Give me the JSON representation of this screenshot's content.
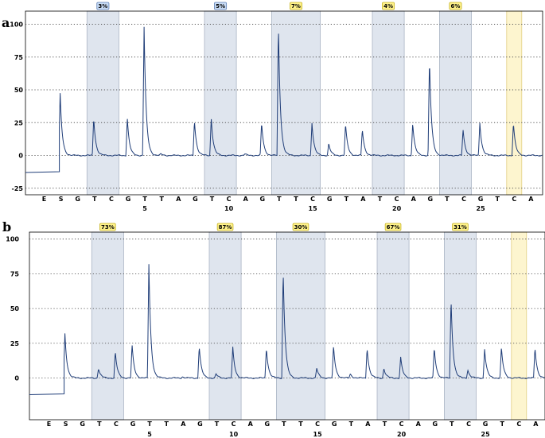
{
  "chart_data": [
    {
      "type": "pyrogram",
      "panel": "a",
      "ylim": [
        -30,
        110
      ],
      "yticks": [
        -25,
        0,
        25,
        50,
        75,
        100
      ],
      "grid": true,
      "bases": [
        "E",
        "S",
        "G",
        "T",
        "C",
        "G",
        "T",
        "T",
        "A",
        "G",
        "T",
        "C",
        "A",
        "G",
        "T",
        "T",
        "C",
        "G",
        "T",
        "A",
        "T",
        "C",
        "A",
        "G",
        "T",
        "C",
        "G",
        "T",
        "C",
        "A"
      ],
      "position_labels": [
        {
          "index": 6,
          "label": "5"
        },
        {
          "index": 11,
          "label": "10"
        },
        {
          "index": 16,
          "label": "15"
        },
        {
          "index": 21,
          "label": "20"
        },
        {
          "index": 26,
          "label": "25"
        }
      ],
      "regions": [
        {
          "start": 3,
          "end": 4,
          "label": "3%",
          "color": "blue"
        },
        {
          "start": 10,
          "end": 11,
          "label": "5%",
          "color": "blue"
        },
        {
          "start": 14,
          "end": 16,
          "label": "7%",
          "color": "yellow"
        },
        {
          "start": 20,
          "end": 21,
          "label": "4%",
          "color": "yellow"
        },
        {
          "start": 24,
          "end": 25,
          "label": "6%",
          "color": "yellow"
        }
      ],
      "control": {
        "index": 28
      },
      "baseline_start": -13,
      "baseline_step_index": 1,
      "peaks": [
        {
          "index": 1,
          "value": 47
        },
        {
          "index": 3,
          "value": 29
        },
        {
          "index": 5,
          "value": 29
        },
        {
          "index": 6,
          "value": 98
        },
        {
          "index": 7,
          "value": 1
        },
        {
          "index": 9,
          "value": 27
        },
        {
          "index": 10,
          "value": 29
        },
        {
          "index": 12,
          "value": 1
        },
        {
          "index": 13,
          "value": 25
        },
        {
          "index": 14,
          "value": 100
        },
        {
          "index": 16,
          "value": 25
        },
        {
          "index": 17,
          "value": 9
        },
        {
          "index": 18,
          "value": 24
        },
        {
          "index": 19,
          "value": 20
        },
        {
          "index": 22,
          "value": 25
        },
        {
          "index": 23,
          "value": 74
        },
        {
          "index": 25,
          "value": 20
        },
        {
          "index": 26,
          "value": 25
        },
        {
          "index": 28,
          "value": 25
        }
      ]
    },
    {
      "type": "pyrogram",
      "panel": "b",
      "ylim": [
        -30,
        105
      ],
      "yticks": [
        0,
        25,
        50,
        75,
        100
      ],
      "grid": true,
      "bases": [
        "E",
        "S",
        "G",
        "T",
        "C",
        "G",
        "T",
        "T",
        "A",
        "G",
        "T",
        "C",
        "A",
        "G",
        "T",
        "T",
        "C",
        "G",
        "T",
        "A",
        "T",
        "C",
        "A",
        "G",
        "T",
        "C",
        "G",
        "T",
        "C",
        "A"
      ],
      "position_labels": [
        {
          "index": 6,
          "label": "5"
        },
        {
          "index": 11,
          "label": "10"
        },
        {
          "index": 16,
          "label": "15"
        },
        {
          "index": 21,
          "label": "20"
        },
        {
          "index": 26,
          "label": "25"
        }
      ],
      "regions": [
        {
          "start": 3,
          "end": 4,
          "label": "73%",
          "color": "yellow"
        },
        {
          "start": 10,
          "end": 11,
          "label": "87%",
          "color": "yellow"
        },
        {
          "start": 14,
          "end": 16,
          "label": "30%",
          "color": "yellow"
        },
        {
          "start": 20,
          "end": 21,
          "label": "67%",
          "color": "yellow"
        },
        {
          "start": 24,
          "end": 25,
          "label": "31%",
          "color": "yellow"
        }
      ],
      "control": {
        "index": 28
      },
      "baseline_start": -12,
      "baseline_step_index": 1,
      "peaks": [
        {
          "index": 1,
          "value": 32
        },
        {
          "index": 3,
          "value": 7
        },
        {
          "index": 4,
          "value": 19
        },
        {
          "index": 5,
          "value": 24
        },
        {
          "index": 6,
          "value": 82
        },
        {
          "index": 8,
          "value": 1
        },
        {
          "index": 9,
          "value": 23
        },
        {
          "index": 10,
          "value": 3
        },
        {
          "index": 11,
          "value": 22
        },
        {
          "index": 13,
          "value": 22
        },
        {
          "index": 14,
          "value": 78
        },
        {
          "index": 16,
          "value": 7
        },
        {
          "index": 17,
          "value": 23
        },
        {
          "index": 18,
          "value": 3
        },
        {
          "index": 19,
          "value": 22
        },
        {
          "index": 20,
          "value": 7
        },
        {
          "index": 21,
          "value": 15
        },
        {
          "index": 23,
          "value": 22
        },
        {
          "index": 24,
          "value": 57
        },
        {
          "index": 25,
          "value": 6
        },
        {
          "index": 26,
          "value": 21
        },
        {
          "index": 27,
          "value": 22
        },
        {
          "index": 29,
          "value": 22
        }
      ]
    }
  ],
  "colors": {
    "trace": "#1f3d78",
    "region_fill": "#dfe5ee",
    "region_stroke": "#aab4c4",
    "control_fill": "#fdf5cf",
    "control_stroke": "#e2cf80",
    "badge_blue_fill": "#c9dcf5",
    "badge_blue_stroke": "#5d7fb5",
    "badge_yellow_fill": "#fff28a",
    "badge_yellow_stroke": "#c6b326",
    "grid": "#555555"
  }
}
